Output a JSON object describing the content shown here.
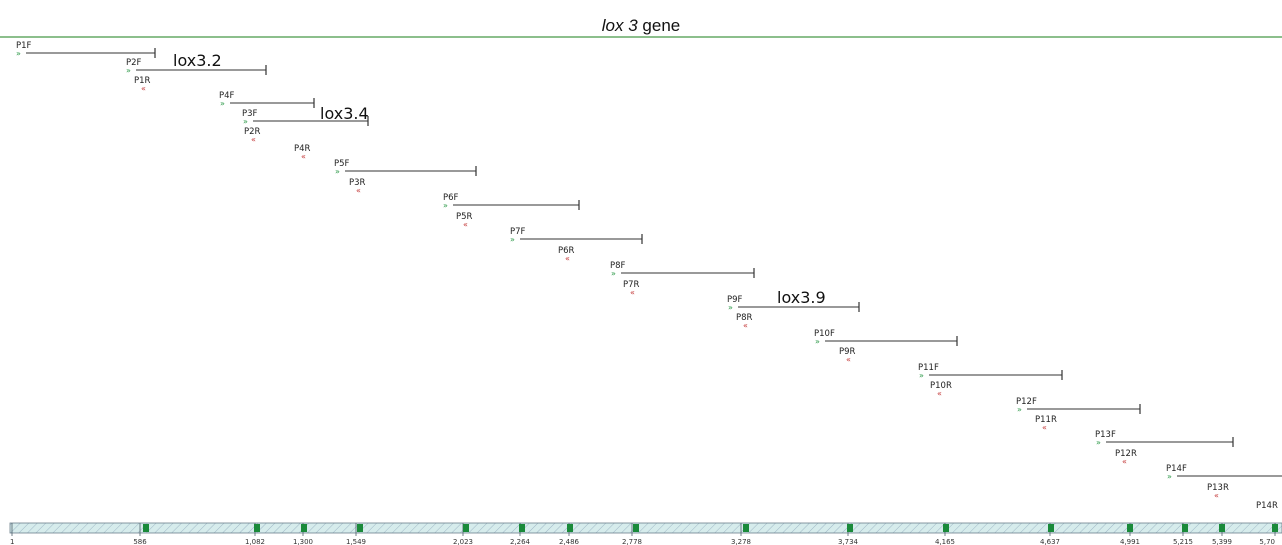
{
  "header": {
    "gene_italic": "lox 3",
    "gene_suffix": " gene"
  },
  "colors": {
    "border_line": "#66aa66",
    "primer_line": "#333333",
    "forward_arrow": "#2e9a4a",
    "reverse_arrow": "#c43a3a",
    "ruler_fill": "#d6ecec",
    "ruler_hatch": "#9fb7c6",
    "ruler_mark": "#1a8a3a"
  },
  "amplicons": [
    {
      "forward": "P1F",
      "reverse": "P1R",
      "label": ""
    },
    {
      "forward": "P2F",
      "reverse": "P2R",
      "label": "lox3.2"
    },
    {
      "forward": "P3F",
      "reverse": "P3R",
      "label": "lox3.4"
    },
    {
      "forward": "P4F",
      "reverse": "P4R",
      "label": ""
    },
    {
      "forward": "P5F",
      "reverse": "P5R",
      "label": ""
    },
    {
      "forward": "P6F",
      "reverse": "P6R",
      "label": ""
    },
    {
      "forward": "P7F",
      "reverse": "P7R",
      "label": ""
    },
    {
      "forward": "P8F",
      "reverse": "P8R",
      "label": ""
    },
    {
      "forward": "P9F",
      "reverse": "P9R",
      "label": "lox3.9"
    },
    {
      "forward": "P10F",
      "reverse": "P10R",
      "label": ""
    },
    {
      "forward": "P11F",
      "reverse": "P11R",
      "label": ""
    },
    {
      "forward": "P12F",
      "reverse": "P12R",
      "label": ""
    },
    {
      "forward": "P13F",
      "reverse": "P13R",
      "label": ""
    },
    {
      "forward": "P14F",
      "reverse": "",
      "label": ""
    }
  ],
  "extra_labels": [
    "P14R"
  ],
  "ruler": {
    "ticks": [
      "1",
      "586",
      "1,082",
      "1,300",
      "1,549",
      "2,023",
      "2,264",
      "2,486",
      "2,778",
      "3,278",
      "3,734",
      "4,165",
      "4,637",
      "4,991",
      "5,215",
      "5,399",
      "5,70"
    ]
  }
}
